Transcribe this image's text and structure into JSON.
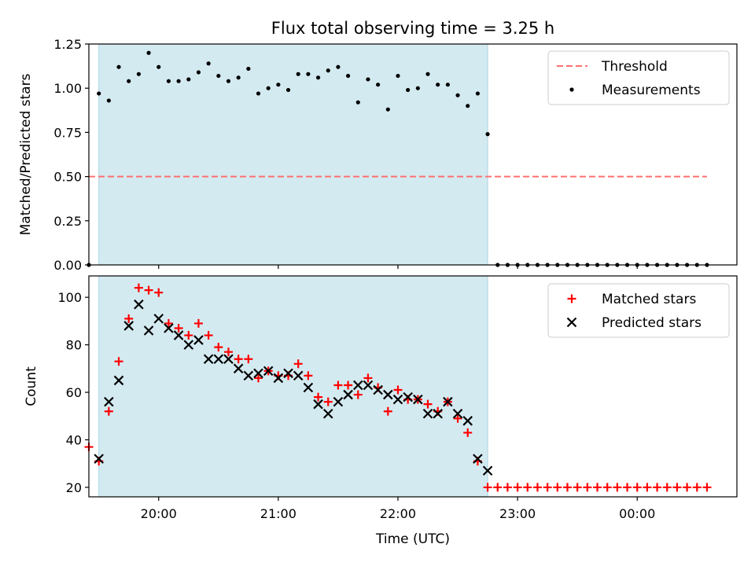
{
  "title": "Flux total observing time = 3.25 h",
  "xlabel": "Time (UTC)",
  "colors": {
    "observing_window": "#d4eaf1",
    "threshold": "#ff7070",
    "measurements": "#000000",
    "matched": "#ff0000",
    "predicted": "#000000"
  },
  "chart_data": [
    {
      "type": "scatter",
      "ylabel": "Matched/Predicted stars",
      "ylim": [
        0,
        1.25
      ],
      "yticks": [
        0.0,
        0.25,
        0.5,
        0.75,
        1.0,
        1.25
      ],
      "ytick_labels": [
        "0.00",
        "0.25",
        "0.50",
        "0.75",
        "1.00",
        "1.25"
      ],
      "xlim": [
        "19:25",
        "00:50"
      ],
      "shaded_window": [
        "19:30",
        "22:45"
      ],
      "legend_position": "top-right",
      "threshold": {
        "name": "Threshold",
        "value": 0.5,
        "x": [
          "19:25",
          "00:35"
        ],
        "style": "dashed"
      },
      "series": [
        {
          "name": "Measurements",
          "x": [
            "19:25",
            "19:30",
            "19:35",
            "19:40",
            "19:45",
            "19:50",
            "19:55",
            "20:00",
            "20:05",
            "20:10",
            "20:15",
            "20:20",
            "20:25",
            "20:30",
            "20:35",
            "20:40",
            "20:45",
            "20:50",
            "20:55",
            "21:00",
            "21:05",
            "21:10",
            "21:15",
            "21:20",
            "21:25",
            "21:30",
            "21:35",
            "21:40",
            "21:45",
            "21:50",
            "21:55",
            "22:00",
            "22:05",
            "22:10",
            "22:15",
            "22:20",
            "22:25",
            "22:30",
            "22:35",
            "22:40",
            "22:45",
            "22:50",
            "22:55",
            "23:00",
            "23:05",
            "23:10",
            "23:15",
            "23:20",
            "23:25",
            "23:30",
            "23:35",
            "23:40",
            "23:45",
            "23:50",
            "23:55",
            "00:00",
            "00:05",
            "00:10",
            "00:15",
            "00:20",
            "00:25",
            "00:30",
            "00:35"
          ],
          "values": [
            0.0,
            0.97,
            0.93,
            1.12,
            1.04,
            1.08,
            1.2,
            1.12,
            1.04,
            1.04,
            1.05,
            1.09,
            1.14,
            1.07,
            1.04,
            1.06,
            1.11,
            0.97,
            1.0,
            1.02,
            0.99,
            1.08,
            1.08,
            1.06,
            1.1,
            1.12,
            1.07,
            0.92,
            1.05,
            1.02,
            0.88,
            1.07,
            0.99,
            1.0,
            1.08,
            1.02,
            1.02,
            0.96,
            0.9,
            0.97,
            0.74,
            0.0,
            0.0,
            0.0,
            0.0,
            0.0,
            0.0,
            0.0,
            0.0,
            0.0,
            0.0,
            0.0,
            0.0,
            0.0,
            0.0,
            0.0,
            0.0,
            0.0,
            0.0,
            0.0,
            0.0,
            0.0,
            0.0
          ]
        }
      ],
      "legend": [
        "Threshold",
        "Measurements"
      ]
    },
    {
      "type": "scatter",
      "ylabel": "Count",
      "ylim": [
        16,
        109
      ],
      "yticks": [
        20,
        40,
        60,
        80,
        100
      ],
      "ytick_labels": [
        "20",
        "40",
        "60",
        "80",
        "100"
      ],
      "xlim": [
        "19:25",
        "00:50"
      ],
      "xticks": [
        "20:00",
        "21:00",
        "22:00",
        "23:00",
        "00:00"
      ],
      "xtick_labels": [
        "20:00",
        "21:00",
        "22:00",
        "23:00",
        "00:00"
      ],
      "shaded_window": [
        "19:30",
        "22:45"
      ],
      "legend_position": "top-right",
      "series": [
        {
          "name": "Matched stars",
          "marker": "plus",
          "x": [
            "19:25",
            "19:30",
            "19:35",
            "19:40",
            "19:45",
            "19:50",
            "19:55",
            "20:00",
            "20:05",
            "20:10",
            "20:15",
            "20:20",
            "20:25",
            "20:30",
            "20:35",
            "20:40",
            "20:45",
            "20:50",
            "20:55",
            "21:00",
            "21:05",
            "21:10",
            "21:15",
            "21:20",
            "21:25",
            "21:30",
            "21:35",
            "21:40",
            "21:45",
            "21:50",
            "21:55",
            "22:00",
            "22:05",
            "22:10",
            "22:15",
            "22:20",
            "22:25",
            "22:30",
            "22:35",
            "22:40",
            "22:45",
            "22:50",
            "22:55",
            "23:00",
            "23:05",
            "23:10",
            "23:15",
            "23:20",
            "23:25",
            "23:30",
            "23:35",
            "23:40",
            "23:45",
            "23:50",
            "23:55",
            "00:00",
            "00:05",
            "00:10",
            "00:15",
            "00:20",
            "00:25",
            "00:30",
            "00:35"
          ],
          "values": [
            37,
            31,
            52,
            73,
            91,
            104,
            103,
            102,
            89,
            87,
            84,
            89,
            84,
            79,
            77,
            74,
            74,
            66,
            69,
            67,
            67,
            72,
            67,
            58,
            56,
            63,
            63,
            59,
            66,
            62,
            52,
            61,
            57,
            57,
            55,
            52,
            56,
            49,
            43,
            31,
            20,
            20,
            20,
            20,
            20,
            20,
            20,
            20,
            20,
            20,
            20,
            20,
            20,
            20,
            20,
            20,
            20,
            20,
            20,
            20,
            20,
            20,
            20
          ]
        },
        {
          "name": "Predicted stars",
          "marker": "x",
          "x": [
            "19:30",
            "19:35",
            "19:40",
            "19:45",
            "19:50",
            "19:55",
            "20:00",
            "20:05",
            "20:10",
            "20:15",
            "20:20",
            "20:25",
            "20:30",
            "20:35",
            "20:40",
            "20:45",
            "20:50",
            "20:55",
            "21:00",
            "21:05",
            "21:10",
            "21:15",
            "21:20",
            "21:25",
            "21:30",
            "21:35",
            "21:40",
            "21:45",
            "21:50",
            "21:55",
            "22:00",
            "22:05",
            "22:10",
            "22:15",
            "22:20",
            "22:25",
            "22:30",
            "22:35",
            "22:40",
            "22:45"
          ],
          "values": [
            32,
            56,
            65,
            88,
            97,
            86,
            91,
            87,
            84,
            80,
            82,
            74,
            74,
            74,
            70,
            67,
            68,
            69,
            66,
            68,
            67,
            62,
            55,
            51,
            56,
            59,
            63,
            63,
            61,
            59,
            57,
            58,
            57,
            51,
            51,
            56,
            51,
            48,
            32,
            27
          ]
        }
      ],
      "legend": [
        "Matched stars",
        "Predicted stars"
      ]
    }
  ]
}
